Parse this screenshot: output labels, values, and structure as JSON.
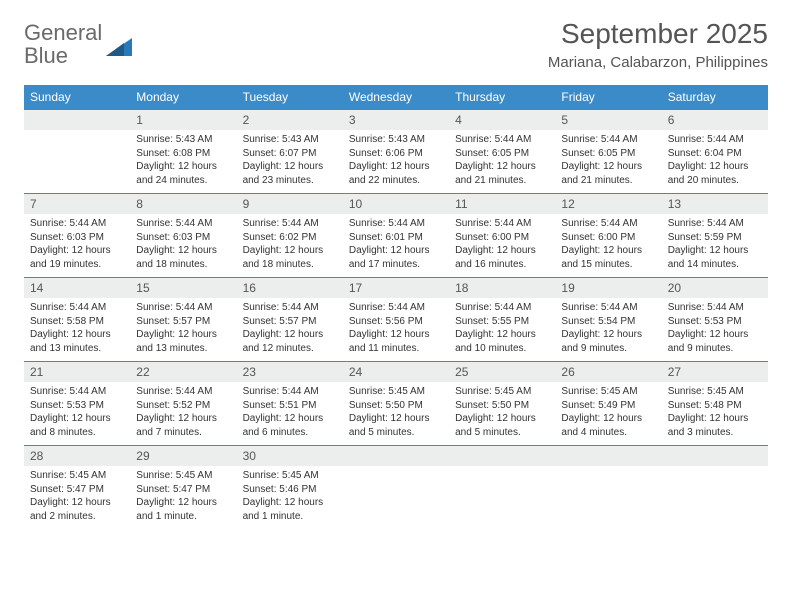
{
  "branding": {
    "logo_word1": "General",
    "logo_word2": "Blue",
    "logo_color_gray": "#6a6a6a",
    "logo_color_blue": "#2a7ab9"
  },
  "header": {
    "title": "September 2025",
    "location": "Mariana, Calabarzon, Philippines",
    "title_fontsize": 28,
    "location_fontsize": 15,
    "text_color": "#555555"
  },
  "styling": {
    "header_row_bg": "#3b8bc8",
    "header_row_text": "#ffffff",
    "daynum_bg": "#eceded",
    "daynum_text": "#555555",
    "body_text": "#333333",
    "row_border": "#3b8bc8",
    "page_bg": "#ffffff",
    "daynum_fontsize": 12,
    "content_fontsize": 10,
    "header_cell_fontsize": 12
  },
  "weekdays": [
    "Sunday",
    "Monday",
    "Tuesday",
    "Wednesday",
    "Thursday",
    "Friday",
    "Saturday"
  ],
  "weeks": [
    [
      {
        "blank": true
      },
      {
        "day": "1",
        "sunrise": "Sunrise: 5:43 AM",
        "sunset": "Sunset: 6:08 PM",
        "daylight1": "Daylight: 12 hours",
        "daylight2": "and 24 minutes."
      },
      {
        "day": "2",
        "sunrise": "Sunrise: 5:43 AM",
        "sunset": "Sunset: 6:07 PM",
        "daylight1": "Daylight: 12 hours",
        "daylight2": "and 23 minutes."
      },
      {
        "day": "3",
        "sunrise": "Sunrise: 5:43 AM",
        "sunset": "Sunset: 6:06 PM",
        "daylight1": "Daylight: 12 hours",
        "daylight2": "and 22 minutes."
      },
      {
        "day": "4",
        "sunrise": "Sunrise: 5:44 AM",
        "sunset": "Sunset: 6:05 PM",
        "daylight1": "Daylight: 12 hours",
        "daylight2": "and 21 minutes."
      },
      {
        "day": "5",
        "sunrise": "Sunrise: 5:44 AM",
        "sunset": "Sunset: 6:05 PM",
        "daylight1": "Daylight: 12 hours",
        "daylight2": "and 21 minutes."
      },
      {
        "day": "6",
        "sunrise": "Sunrise: 5:44 AM",
        "sunset": "Sunset: 6:04 PM",
        "daylight1": "Daylight: 12 hours",
        "daylight2": "and 20 minutes."
      }
    ],
    [
      {
        "day": "7",
        "sunrise": "Sunrise: 5:44 AM",
        "sunset": "Sunset: 6:03 PM",
        "daylight1": "Daylight: 12 hours",
        "daylight2": "and 19 minutes."
      },
      {
        "day": "8",
        "sunrise": "Sunrise: 5:44 AM",
        "sunset": "Sunset: 6:03 PM",
        "daylight1": "Daylight: 12 hours",
        "daylight2": "and 18 minutes."
      },
      {
        "day": "9",
        "sunrise": "Sunrise: 5:44 AM",
        "sunset": "Sunset: 6:02 PM",
        "daylight1": "Daylight: 12 hours",
        "daylight2": "and 18 minutes."
      },
      {
        "day": "10",
        "sunrise": "Sunrise: 5:44 AM",
        "sunset": "Sunset: 6:01 PM",
        "daylight1": "Daylight: 12 hours",
        "daylight2": "and 17 minutes."
      },
      {
        "day": "11",
        "sunrise": "Sunrise: 5:44 AM",
        "sunset": "Sunset: 6:00 PM",
        "daylight1": "Daylight: 12 hours",
        "daylight2": "and 16 minutes."
      },
      {
        "day": "12",
        "sunrise": "Sunrise: 5:44 AM",
        "sunset": "Sunset: 6:00 PM",
        "daylight1": "Daylight: 12 hours",
        "daylight2": "and 15 minutes."
      },
      {
        "day": "13",
        "sunrise": "Sunrise: 5:44 AM",
        "sunset": "Sunset: 5:59 PM",
        "daylight1": "Daylight: 12 hours",
        "daylight2": "and 14 minutes."
      }
    ],
    [
      {
        "day": "14",
        "sunrise": "Sunrise: 5:44 AM",
        "sunset": "Sunset: 5:58 PM",
        "daylight1": "Daylight: 12 hours",
        "daylight2": "and 13 minutes."
      },
      {
        "day": "15",
        "sunrise": "Sunrise: 5:44 AM",
        "sunset": "Sunset: 5:57 PM",
        "daylight1": "Daylight: 12 hours",
        "daylight2": "and 13 minutes."
      },
      {
        "day": "16",
        "sunrise": "Sunrise: 5:44 AM",
        "sunset": "Sunset: 5:57 PM",
        "daylight1": "Daylight: 12 hours",
        "daylight2": "and 12 minutes."
      },
      {
        "day": "17",
        "sunrise": "Sunrise: 5:44 AM",
        "sunset": "Sunset: 5:56 PM",
        "daylight1": "Daylight: 12 hours",
        "daylight2": "and 11 minutes."
      },
      {
        "day": "18",
        "sunrise": "Sunrise: 5:44 AM",
        "sunset": "Sunset: 5:55 PM",
        "daylight1": "Daylight: 12 hours",
        "daylight2": "and 10 minutes."
      },
      {
        "day": "19",
        "sunrise": "Sunrise: 5:44 AM",
        "sunset": "Sunset: 5:54 PM",
        "daylight1": "Daylight: 12 hours",
        "daylight2": "and 9 minutes."
      },
      {
        "day": "20",
        "sunrise": "Sunrise: 5:44 AM",
        "sunset": "Sunset: 5:53 PM",
        "daylight1": "Daylight: 12 hours",
        "daylight2": "and 9 minutes."
      }
    ],
    [
      {
        "day": "21",
        "sunrise": "Sunrise: 5:44 AM",
        "sunset": "Sunset: 5:53 PM",
        "daylight1": "Daylight: 12 hours",
        "daylight2": "and 8 minutes."
      },
      {
        "day": "22",
        "sunrise": "Sunrise: 5:44 AM",
        "sunset": "Sunset: 5:52 PM",
        "daylight1": "Daylight: 12 hours",
        "daylight2": "and 7 minutes."
      },
      {
        "day": "23",
        "sunrise": "Sunrise: 5:44 AM",
        "sunset": "Sunset: 5:51 PM",
        "daylight1": "Daylight: 12 hours",
        "daylight2": "and 6 minutes."
      },
      {
        "day": "24",
        "sunrise": "Sunrise: 5:45 AM",
        "sunset": "Sunset: 5:50 PM",
        "daylight1": "Daylight: 12 hours",
        "daylight2": "and 5 minutes."
      },
      {
        "day": "25",
        "sunrise": "Sunrise: 5:45 AM",
        "sunset": "Sunset: 5:50 PM",
        "daylight1": "Daylight: 12 hours",
        "daylight2": "and 5 minutes."
      },
      {
        "day": "26",
        "sunrise": "Sunrise: 5:45 AM",
        "sunset": "Sunset: 5:49 PM",
        "daylight1": "Daylight: 12 hours",
        "daylight2": "and 4 minutes."
      },
      {
        "day": "27",
        "sunrise": "Sunrise: 5:45 AM",
        "sunset": "Sunset: 5:48 PM",
        "daylight1": "Daylight: 12 hours",
        "daylight2": "and 3 minutes."
      }
    ],
    [
      {
        "day": "28",
        "sunrise": "Sunrise: 5:45 AM",
        "sunset": "Sunset: 5:47 PM",
        "daylight1": "Daylight: 12 hours",
        "daylight2": "and 2 minutes."
      },
      {
        "day": "29",
        "sunrise": "Sunrise: 5:45 AM",
        "sunset": "Sunset: 5:47 PM",
        "daylight1": "Daylight: 12 hours",
        "daylight2": "and 1 minute."
      },
      {
        "day": "30",
        "sunrise": "Sunrise: 5:45 AM",
        "sunset": "Sunset: 5:46 PM",
        "daylight1": "Daylight: 12 hours",
        "daylight2": "and 1 minute."
      },
      {
        "blank": true
      },
      {
        "blank": true
      },
      {
        "blank": true
      },
      {
        "blank": true
      }
    ]
  ]
}
